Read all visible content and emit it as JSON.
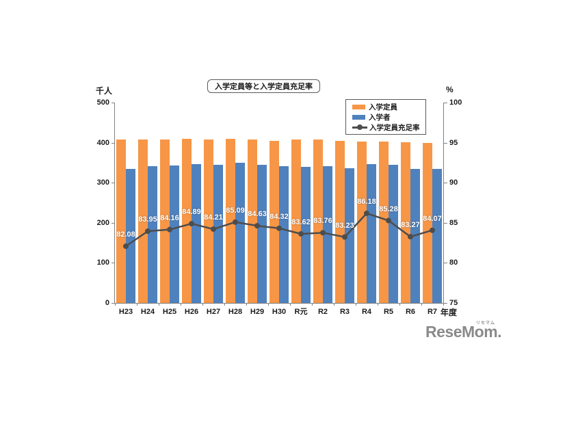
{
  "page": {
    "watermark": {
      "text": "ReseMom.",
      "ruby": "リセマム",
      "color": "#8a8a8a"
    }
  },
  "chart_data": {
    "type": "bar+line",
    "title": "入学定員等と入学定員充足率",
    "grid": false,
    "axis_color": "#808080",
    "left_axis": {
      "label": "千人",
      "min": 0,
      "max": 500,
      "ticks": [
        0,
        100,
        200,
        300,
        400,
        500
      ]
    },
    "right_axis": {
      "label": "%",
      "min": 75,
      "max": 100,
      "ticks": [
        75,
        80,
        85,
        90,
        95,
        100
      ]
    },
    "x_axis": {
      "label": "年度",
      "categories": [
        "H23",
        "H24",
        "H25",
        "H26",
        "H27",
        "H28",
        "H29",
        "H30",
        "R元",
        "R2",
        "R3",
        "R4",
        "R5",
        "R6",
        "R7"
      ]
    },
    "series": [
      {
        "name": "入学定員",
        "type": "bar",
        "axis": "left",
        "color": "#F79646",
        "values": [
          408,
          407,
          408,
          409,
          408,
          410,
          407,
          405,
          407,
          407,
          404,
          402,
          403,
          401,
          399
        ]
      },
      {
        "name": "入学者",
        "type": "bar",
        "axis": "left",
        "color": "#4F81BD",
        "values": [
          335,
          342,
          343,
          347,
          344,
          349,
          344,
          342,
          340,
          341,
          336,
          347,
          344,
          334,
          335
        ]
      },
      {
        "name": "入学定員充足率",
        "type": "line",
        "axis": "right",
        "color": "#4D4D4D",
        "label_color": "#ffffff",
        "values": [
          82.08,
          83.95,
          84.16,
          84.89,
          84.21,
          85.09,
          84.63,
          84.32,
          83.62,
          83.76,
          83.23,
          86.18,
          85.28,
          83.27,
          84.07
        ]
      }
    ],
    "legend": {
      "position": "top-right",
      "border_color": "#595959"
    }
  }
}
